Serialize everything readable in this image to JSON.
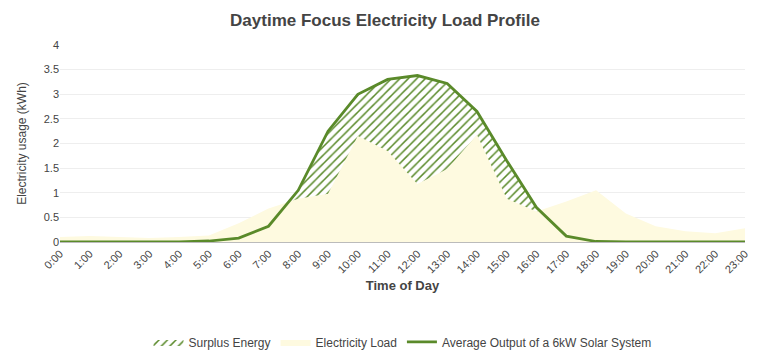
{
  "chart_data": {
    "type": "area",
    "title": "Daytime Focus Electricity Load Profile",
    "xlabel": "Time of Day",
    "ylabel": "Electricity usage (kWh)",
    "x": [
      0,
      1,
      2,
      3,
      4,
      5,
      6,
      7,
      8,
      9,
      10,
      11,
      12,
      13,
      14,
      15,
      16,
      17,
      18,
      19,
      20,
      21,
      22,
      23
    ],
    "xlim": [
      0,
      23
    ],
    "xticks": [
      {
        "value": 0,
        "label": "0:00"
      },
      {
        "value": 1,
        "label": "1:00"
      },
      {
        "value": 2,
        "label": "2:00"
      },
      {
        "value": 3,
        "label": "3:00"
      },
      {
        "value": 4,
        "label": "4:00"
      },
      {
        "value": 5,
        "label": "5:00"
      },
      {
        "value": 6,
        "label": "6:00"
      },
      {
        "value": 7,
        "label": "7:00"
      },
      {
        "value": 8,
        "label": "8:00"
      },
      {
        "value": 9,
        "label": "9:00"
      },
      {
        "value": 10,
        "label": "10:00"
      },
      {
        "value": 11,
        "label": "11:00"
      },
      {
        "value": 12,
        "label": "12:00"
      },
      {
        "value": 13,
        "label": "13:00"
      },
      {
        "value": 14,
        "label": "14:00"
      },
      {
        "value": 15,
        "label": "15:00"
      },
      {
        "value": 16,
        "label": "16:00"
      },
      {
        "value": 17,
        "label": "17:00"
      },
      {
        "value": 18,
        "label": "18:00"
      },
      {
        "value": 19,
        "label": "19:00"
      },
      {
        "value": 20,
        "label": "20:00"
      },
      {
        "value": 21,
        "label": "21:00"
      },
      {
        "value": 22,
        "label": "22:00"
      },
      {
        "value": 23,
        "label": "23:00"
      }
    ],
    "ylim": [
      0,
      4
    ],
    "yticks": [
      0,
      0.5,
      1,
      1.5,
      2,
      2.5,
      3,
      3.5,
      4
    ],
    "grid": true,
    "legend": "bottom",
    "series": [
      {
        "name": "Surplus Energy",
        "type": "surplus",
        "color": "#5a8a2a"
      },
      {
        "name": "Electricity Load",
        "type": "area",
        "color": "#fefae0",
        "values": [
          0.1,
          0.12,
          0.1,
          0.08,
          0.1,
          0.13,
          0.38,
          0.68,
          0.88,
          0.98,
          2.15,
          1.85,
          1.18,
          1.48,
          2.18,
          0.88,
          0.62,
          0.82,
          1.05,
          0.58,
          0.32,
          0.22,
          0.18,
          0.28
        ]
      },
      {
        "name": "Average Output of a 6kW Solar System",
        "type": "line",
        "color": "#5a8a2a",
        "values": [
          0.0,
          0.0,
          0.0,
          0.0,
          0.0,
          0.02,
          0.08,
          0.32,
          1.05,
          2.25,
          3.0,
          3.3,
          3.38,
          3.22,
          2.65,
          1.65,
          0.7,
          0.12,
          0.01,
          0.0,
          0.0,
          0.0,
          0.0,
          0.0
        ]
      }
    ]
  }
}
